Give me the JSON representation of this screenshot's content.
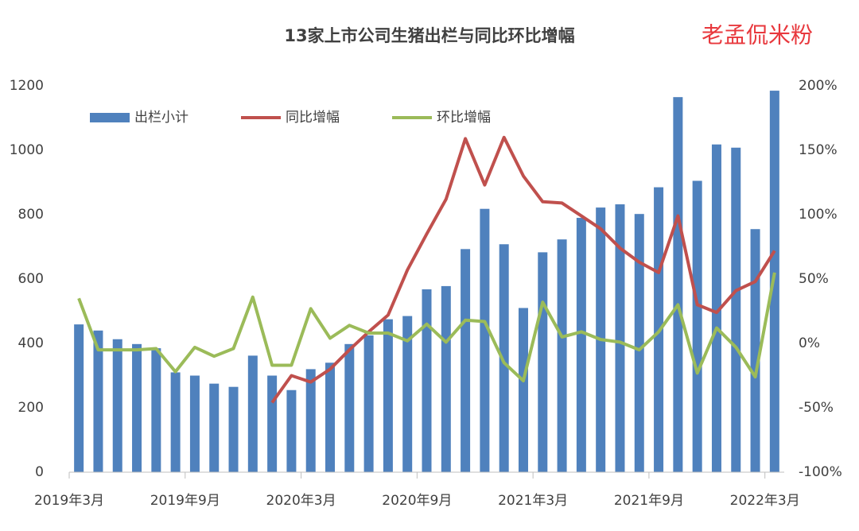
{
  "chart_data": {
    "type": "bar-line",
    "title": "13家上市公司生猪出栏与同比环比增幅",
    "annotation": "老孟侃米粉",
    "categories": [
      "2019年3月",
      null,
      null,
      null,
      null,
      null,
      "2019年9月",
      null,
      null,
      null,
      null,
      null,
      "2020年3月",
      null,
      null,
      null,
      null,
      null,
      "2020年9月",
      null,
      null,
      null,
      null,
      null,
      "2021年3月",
      null,
      null,
      null,
      null,
      null,
      "2021年9月",
      null,
      null,
      null,
      null,
      null,
      "2022年3月"
    ],
    "series": [
      {
        "name": "出栏小计",
        "type": "bar",
        "axis": "y",
        "color": "#4f81bd",
        "values": [
          459,
          440,
          413,
          398,
          385,
          310,
          300,
          275,
          265,
          362,
          300,
          255,
          320,
          340,
          398,
          425,
          475,
          485,
          568,
          578,
          693,
          818,
          708,
          510,
          683,
          723,
          790,
          822,
          832,
          802,
          885,
          1165,
          905,
          1018,
          1008,
          755,
          1185
        ]
      },
      {
        "name": "同比增幅",
        "type": "line",
        "axis": "y2",
        "color": "#c0504d",
        "values": [
          null,
          null,
          null,
          null,
          null,
          null,
          null,
          null,
          null,
          null,
          -46,
          -25,
          -30,
          -20,
          -5,
          9,
          22,
          57,
          85,
          112,
          159,
          123,
          160,
          130,
          110,
          109,
          99,
          89,
          74,
          63,
          55,
          99,
          30,
          24,
          41,
          48,
          72
        ]
      },
      {
        "name": "环比增幅",
        "type": "line",
        "axis": "y2",
        "color": "#9bbb59",
        "values": [
          35,
          -5,
          -5,
          -5,
          -4,
          -22,
          -3,
          -10,
          -4,
          36,
          -17,
          -17,
          27,
          4,
          14,
          8,
          8,
          2,
          15,
          1,
          18,
          17,
          -15,
          -29,
          32,
          5,
          9,
          3,
          1,
          -5,
          9,
          30,
          -23,
          12,
          -3,
          -26,
          55
        ]
      }
    ],
    "ylim": [
      0,
      1200
    ],
    "yticks": [
      0,
      200,
      400,
      600,
      800,
      1000,
      1200
    ],
    "y2lim": [
      -100,
      200
    ],
    "y2ticks": [
      {
        "value": -100,
        "label": "-100%"
      },
      {
        "value": -50,
        "label": "-50%"
      },
      {
        "value": 0,
        "label": "0%"
      },
      {
        "value": 50,
        "label": "50%"
      },
      {
        "value": 100,
        "label": "100%"
      },
      {
        "value": 150,
        "label": "150%"
      },
      {
        "value": 200,
        "label": "200%"
      }
    ],
    "grid": false,
    "legend": "top-left"
  }
}
